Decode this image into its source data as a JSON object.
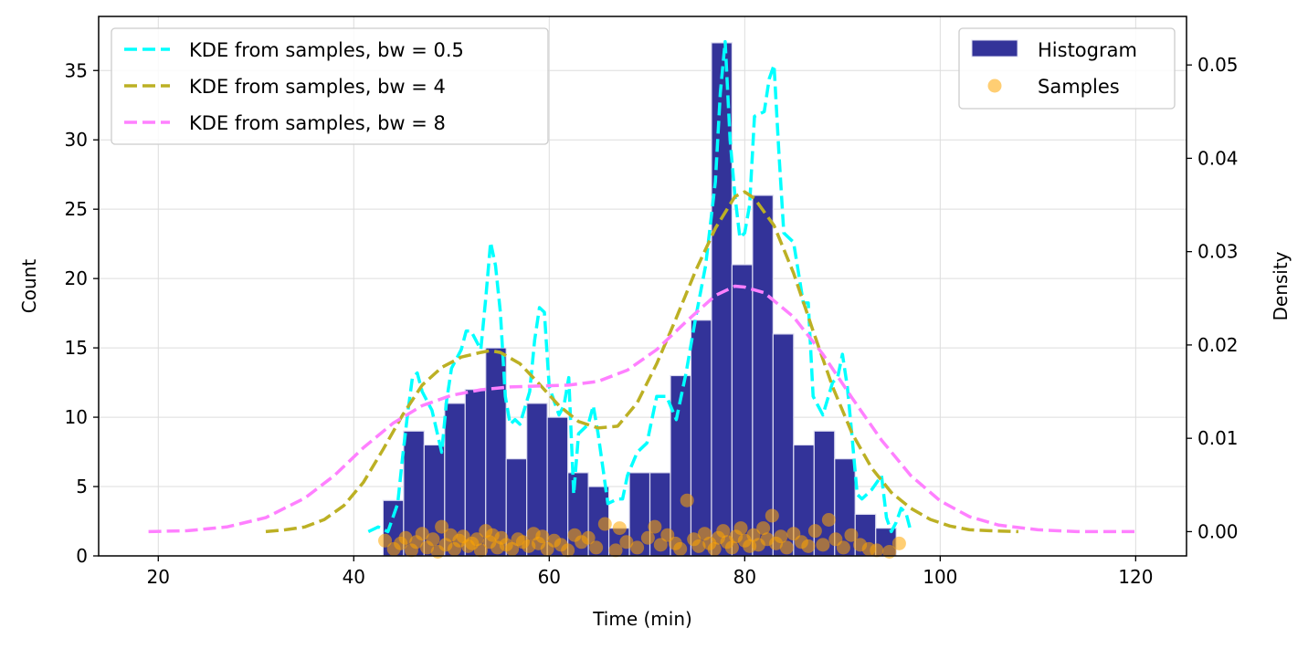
{
  "chart_data": {
    "type": "bar",
    "title": "",
    "xlabel": "Time (min)",
    "ylabel": "Count",
    "y2label": "Density",
    "xlim": [
      13.9,
      125.2
    ],
    "ylim": [
      0,
      38.9
    ],
    "y2lim": [
      -0.0026,
      0.0552
    ],
    "xticks": [
      20,
      40,
      60,
      80,
      100,
      120
    ],
    "yticks": [
      0,
      5,
      10,
      15,
      20,
      25,
      30,
      35
    ],
    "y2ticks": [
      0.0,
      0.01,
      0.02,
      0.03,
      0.04,
      0.05
    ],
    "y2tick_labels": [
      "0.00",
      "0.01",
      "0.02",
      "0.03",
      "0.04",
      "0.05"
    ],
    "grid": true,
    "histogram": {
      "name": "Histogram",
      "color": "#333399",
      "edgecolor": "#dcdcf0",
      "bin_edges": [
        43.0,
        45.1,
        47.2,
        49.3,
        51.4,
        53.5,
        55.6,
        57.7,
        59.8,
        61.9,
        64.0,
        66.1,
        68.2,
        70.3,
        72.4,
        74.5,
        76.6,
        78.7,
        80.8,
        82.9,
        85.0,
        87.1,
        89.2,
        91.3,
        93.4,
        95.5
      ],
      "counts": [
        4,
        9,
        8,
        11,
        12,
        15,
        7,
        11,
        10,
        6,
        5,
        2,
        6,
        6,
        13,
        17,
        37,
        21,
        26,
        16,
        8,
        9,
        7,
        3,
        2
      ]
    },
    "series": [
      {
        "name": "KDE from samples, bw = 0.5",
        "color": "#00ffff",
        "axis": "right",
        "x": [
          41.5,
          42.5,
          43.5,
          44.5,
          45.0,
          45.5,
          46.0,
          46.5,
          47.0,
          48.0,
          49.0,
          49.5,
          50.0,
          50.5,
          51.0,
          51.5,
          52.0,
          53.0,
          53.5,
          54.0,
          54.5,
          55.0,
          55.5,
          56.0,
          56.5,
          57.0,
          58.0,
          58.5,
          59.0,
          59.5,
          60.0,
          61.0,
          61.5,
          62.0,
          62.5,
          63.0,
          64.0,
          64.5,
          65.0,
          66.0,
          67.0,
          67.5,
          68.0,
          69.0,
          70.0,
          71.0,
          72.0,
          73.0,
          74.0,
          75.0,
          76.0,
          77.0,
          77.5,
          78.0,
          78.5,
          79.0,
          79.5,
          80.0,
          80.5,
          81.0,
          82.0,
          82.5,
          83.0,
          83.5,
          84.0,
          85.0,
          86.0,
          86.5,
          87.0,
          88.0,
          89.0,
          89.5,
          90.0,
          90.5,
          91.0,
          91.5,
          92.0,
          93.0,
          94.0,
          94.5,
          95.0,
          95.5,
          96.0,
          96.5,
          97.0
        ],
        "y": [
          0.0,
          0.0005,
          0.0,
          0.003,
          0.008,
          0.0125,
          0.0165,
          0.017,
          0.015,
          0.013,
          0.0085,
          0.014,
          0.0175,
          0.0185,
          0.0195,
          0.0215,
          0.0215,
          0.0195,
          0.025,
          0.031,
          0.0285,
          0.0235,
          0.0145,
          0.0115,
          0.012,
          0.0115,
          0.015,
          0.0205,
          0.024,
          0.0235,
          0.0155,
          0.0125,
          0.0135,
          0.0165,
          0.004,
          0.0105,
          0.0115,
          0.0135,
          0.0105,
          0.003,
          0.0035,
          0.0035,
          0.006,
          0.0085,
          0.0095,
          0.0145,
          0.0145,
          0.012,
          0.017,
          0.023,
          0.0285,
          0.0375,
          0.047,
          0.0525,
          0.042,
          0.036,
          0.0315,
          0.032,
          0.035,
          0.0445,
          0.045,
          0.0485,
          0.05,
          0.0405,
          0.032,
          0.031,
          0.0245,
          0.0245,
          0.0145,
          0.0125,
          0.016,
          0.0165,
          0.019,
          0.0155,
          0.01,
          0.004,
          0.0035,
          0.0045,
          0.006,
          0.0015,
          0.0,
          0.001,
          0.0025,
          0.002,
          0.0
        ]
      },
      {
        "name": "KDE from samples, bw = 4",
        "color": "#bcb024",
        "axis": "right",
        "x": [
          31.0,
          33.0,
          35.0,
          37.0,
          39.0,
          41.0,
          43.0,
          45.0,
          47.0,
          49.0,
          51.0,
          53.0,
          54.0,
          55.0,
          57.0,
          59.0,
          61.0,
          63.0,
          65.0,
          67.0,
          69.0,
          71.0,
          73.0,
          75.0,
          77.0,
          79.0,
          80.0,
          81.0,
          83.0,
          85.0,
          87.0,
          89.0,
          91.0,
          93.0,
          95.0,
          97.0,
          99.0,
          101.0,
          103.0,
          105.0,
          108.0
        ],
        "y": [
          0.0,
          0.0002,
          0.0005,
          0.0013,
          0.0028,
          0.0053,
          0.0088,
          0.0125,
          0.0157,
          0.0176,
          0.0187,
          0.0192,
          0.0194,
          0.0192,
          0.018,
          0.0158,
          0.0135,
          0.0118,
          0.0111,
          0.0113,
          0.0138,
          0.018,
          0.0229,
          0.028,
          0.0325,
          0.0359,
          0.0364,
          0.0357,
          0.0328,
          0.0277,
          0.0215,
          0.0155,
          0.0105,
          0.0068,
          0.0042,
          0.0025,
          0.0013,
          0.0006,
          0.0002,
          0.0001,
          0.0
        ]
      },
      {
        "name": "KDE from samples, bw = 8",
        "color": "#ff80ff",
        "axis": "right",
        "x": [
          19.0,
          23.0,
          27.0,
          31.0,
          35.0,
          38.0,
          41.0,
          44.0,
          47.0,
          50.0,
          53.0,
          56.0,
          59.0,
          62.0,
          65.0,
          68.0,
          71.0,
          74.0,
          77.0,
          79.0,
          80.0,
          82.0,
          85.0,
          88.0,
          91.0,
          94.0,
          97.0,
          100.0,
          103.0,
          106.0,
          110.0,
          114.0,
          120.0
        ],
        "y": [
          0.0,
          0.0001,
          0.0005,
          0.0015,
          0.0036,
          0.006,
          0.009,
          0.0116,
          0.0135,
          0.0146,
          0.0152,
          0.0155,
          0.0156,
          0.0157,
          0.0161,
          0.0173,
          0.0195,
          0.0225,
          0.0253,
          0.0263,
          0.0262,
          0.0256,
          0.023,
          0.019,
          0.0143,
          0.0098,
          0.006,
          0.0033,
          0.0016,
          0.0007,
          0.0002,
          0.0,
          0.0
        ]
      }
    ],
    "samples": {
      "name": "Samples",
      "color": "#ffa500",
      "axis": "left",
      "x": [
        43.2,
        44.1,
        44.8,
        45.3,
        45.9,
        46.4,
        47.0,
        47.5,
        48.1,
        48.6,
        49.0,
        49.4,
        49.9,
        50.3,
        50.8,
        51.2,
        51.7,
        52.1,
        52.6,
        53.0,
        53.5,
        53.9,
        54.2,
        54.7,
        55.1,
        55.6,
        56.2,
        56.8,
        57.3,
        57.9,
        58.4,
        58.9,
        59.3,
        59.8,
        60.5,
        61.2,
        61.9,
        62.6,
        63.3,
        64.0,
        64.8,
        65.7,
        66.8,
        67.2,
        67.9,
        69.0,
        70.1,
        70.8,
        71.4,
        72.1,
        72.9,
        73.4,
        74.1,
        74.8,
        75.3,
        75.9,
        76.4,
        76.9,
        77.3,
        77.8,
        78.2,
        78.7,
        79.1,
        79.6,
        80.0,
        80.5,
        80.9,
        81.4,
        81.9,
        82.3,
        82.8,
        83.2,
        83.7,
        84.3,
        85.0,
        85.8,
        86.5,
        87.2,
        88.0,
        88.6,
        89.3,
        90.1,
        90.9,
        91.8,
        92.7,
        93.5,
        94.8,
        95.8
      ],
      "y": [
        1.1,
        0.5,
        0.9,
        1.3,
        0.4,
        1.0,
        1.6,
        0.6,
        1.2,
        0.3,
        2.1,
        0.8,
        1.5,
        0.5,
        1.1,
        1.4,
        0.7,
        0.9,
        1.2,
        0.4,
        1.8,
        1.0,
        1.5,
        0.6,
        1.3,
        0.8,
        0.5,
        1.2,
        1.0,
        0.7,
        1.6,
        0.9,
        1.4,
        0.5,
        1.1,
        0.8,
        0.4,
        1.5,
        1.0,
        1.3,
        0.6,
        2.3,
        0.4,
        2.0,
        1.0,
        0.6,
        1.3,
        2.1,
        0.8,
        1.5,
        0.9,
        0.5,
        4.0,
        1.2,
        0.7,
        1.6,
        0.9,
        0.5,
        1.3,
        1.8,
        1.0,
        0.6,
        1.4,
        2.0,
        1.1,
        0.7,
        1.5,
        0.8,
        2.0,
        1.2,
        2.9,
        0.9,
        1.4,
        0.6,
        1.6,
        1.0,
        0.7,
        1.8,
        0.8,
        2.6,
        1.2,
        0.6,
        1.5,
        0.8,
        0.5,
        0.4,
        0.3,
        0.9
      ]
    },
    "legends": [
      {
        "placement": "upper-left",
        "entries": [
          "KDE from samples, bw = 0.5",
          "KDE from samples, bw = 4",
          "KDE from samples, bw = 8"
        ]
      },
      {
        "placement": "upper-right",
        "entries": [
          "Histogram",
          "Samples"
        ]
      }
    ]
  }
}
